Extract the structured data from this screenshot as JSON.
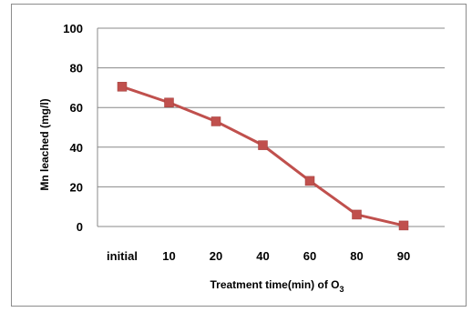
{
  "chart_data": {
    "type": "line",
    "categories": [
      "initial",
      "10",
      "20",
      "40",
      "60",
      "80",
      "90"
    ],
    "series": [
      {
        "values": [
          70.5,
          62.5,
          53,
          41,
          23,
          6,
          0.5
        ]
      }
    ],
    "ylabel": "Mn leached (mg/l)",
    "xlabel_prefix": "Treatment time(min) of O",
    "xlabel_subscript": "3",
    "ylim": [
      0,
      100
    ],
    "yticks": [
      "0",
      "20",
      "40",
      "60",
      "80",
      "100"
    ],
    "grid": true,
    "legend": "none",
    "colors": {
      "series": "#c0504d",
      "grid": "#888888",
      "frame": "#8c8c8c"
    }
  }
}
